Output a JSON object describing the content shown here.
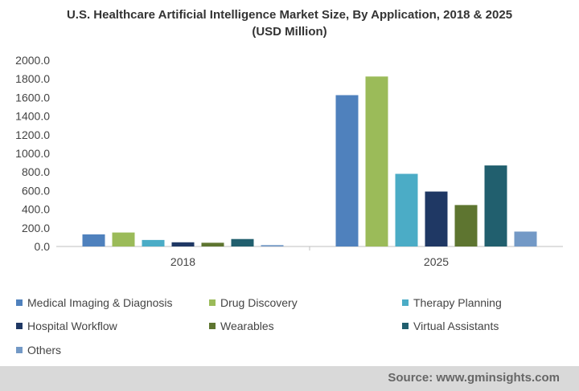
{
  "header": {
    "title_line1": "U.S. Healthcare Artificial Intelligence Market Size, By Application, 2018 & 2025",
    "title_line2": "(USD Million)"
  },
  "footer": {
    "source": "Source: www.gminsights.com"
  },
  "chart_data": {
    "type": "bar",
    "title": "U.S. Healthcare Artificial Intelligence Market Size, By Application, 2018 & 2025 (USD Million)",
    "categories": [
      "2018",
      "2025"
    ],
    "ylim": [
      0,
      2000
    ],
    "yticks": [
      "0.0",
      "200.0",
      "400.0",
      "600.0",
      "800.0",
      "1000.0",
      "1200.0",
      "1400.0",
      "1600.0",
      "1800.0",
      "2000.0"
    ],
    "grid": false,
    "legend": "bottom",
    "series": [
      {
        "name": "Medical Imaging & Diagnosis",
        "color": "#4f81bd",
        "values": [
          130,
          1625
        ]
      },
      {
        "name": "Drug Discovery",
        "color": "#9bbb59",
        "values": [
          150,
          1825
        ]
      },
      {
        "name": "Therapy Planning",
        "color": "#4bacc6",
        "values": [
          70,
          780
        ]
      },
      {
        "name": "Hospital Workflow",
        "color": "#1f3864",
        "values": [
          45,
          590
        ]
      },
      {
        "name": "Wearables",
        "color": "#5e7530",
        "values": [
          40,
          445
        ]
      },
      {
        "name": "Virtual Assistants",
        "color": "#215f6e",
        "values": [
          80,
          870
        ]
      },
      {
        "name": "Others",
        "color": "#7399c6",
        "values": [
          15,
          160
        ]
      }
    ]
  }
}
